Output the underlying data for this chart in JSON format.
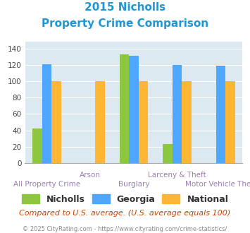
{
  "title_line1": "2015 Nicholls",
  "title_line2": "Property Crime Comparison",
  "categories": [
    "All Property Crime",
    "Arson",
    "Burglary",
    "Larceny & Theft",
    "Motor Vehicle Theft"
  ],
  "series": {
    "Nicholls": [
      42,
      0,
      133,
      23,
      0
    ],
    "Georgia": [
      121,
      0,
      131,
      120,
      119
    ],
    "National": [
      100,
      100,
      100,
      100,
      100
    ]
  },
  "colors": {
    "Nicholls": "#8dc63f",
    "Georgia": "#4da6ff",
    "National": "#ffb733"
  },
  "ylim": [
    0,
    148
  ],
  "yticks": [
    0,
    20,
    40,
    60,
    80,
    100,
    120,
    140
  ],
  "bar_width": 0.22,
  "title_color": "#2196d4",
  "axis_label_color": "#9b7fad",
  "plot_bg": "#dce9f0",
  "footer_text": "Compared to U.S. average. (U.S. average equals 100)",
  "footer_color": "#cc4400",
  "copyright_text": "© 2025 CityRating.com - https://www.cityrating.com/crime-statistics/",
  "copyright_color": "#888888"
}
